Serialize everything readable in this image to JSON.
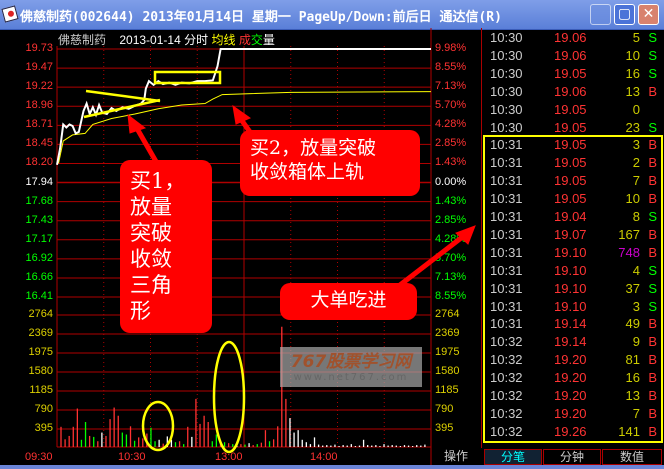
{
  "window": {
    "title": "佛慈制药(002644) 2013年01月14日 星期一 PageUp/Down:前后日 通达信(R)"
  },
  "chart_header": {
    "name": "佛慈制药",
    "date": "2013-01-14",
    "mode": "分时",
    "avg_label": "均线",
    "vol_label_1": "成",
    "vol_label_2": "交",
    "vol_label_3": "量"
  },
  "price_axis": {
    "labels": [
      "19.73",
      "19.47",
      "19.22",
      "18.96",
      "18.71",
      "18.45",
      "18.20",
      "17.94",
      "17.68",
      "17.43",
      "17.17",
      "16.92",
      "16.66",
      "16.41"
    ],
    "pct": [
      "9.98%",
      "8.55%",
      "7.13%",
      "5.70%",
      "4.28%",
      "2.85%",
      "1.43%",
      "0.00%",
      "1.43%",
      "2.85%",
      "4.28%",
      "5.70%",
      "7.13%",
      "8.55%"
    ],
    "prev_close": 17.94
  },
  "volume_axis": {
    "labels": [
      "2764",
      "2369",
      "1975",
      "1580",
      "1185",
      "790",
      "395"
    ]
  },
  "time_axis": [
    "09:30",
    "10:30",
    "13:00",
    "14:00"
  ],
  "colors": {
    "up": "#ff3232",
    "down": "#00ff00",
    "price_line": "#ffffff",
    "avg_line": "#ffff00",
    "grid": "#b00000"
  },
  "chart_data": {
    "type": "line",
    "price": [
      [
        "09:30",
        18.18
      ],
      [
        "09:32",
        18.4
      ],
      [
        "09:34",
        18.72
      ],
      [
        "09:36",
        18.68
      ],
      [
        "09:38",
        18.72
      ],
      [
        "09:40",
        18.7
      ],
      [
        "09:42",
        18.6
      ],
      [
        "09:44",
        18.62
      ],
      [
        "09:47",
        18.9
      ],
      [
        "09:49",
        19.0
      ],
      [
        "09:51",
        18.86
      ],
      [
        "09:53",
        18.95
      ],
      [
        "09:55",
        18.85
      ],
      [
        "09:57",
        18.98
      ],
      [
        "09:59",
        18.88
      ],
      [
        "10:02",
        18.86
      ],
      [
        "10:05",
        18.94
      ],
      [
        "10:08",
        18.9
      ],
      [
        "10:12",
        18.95
      ],
      [
        "10:16",
        18.93
      ],
      [
        "10:20",
        18.97
      ],
      [
        "10:24",
        19.0
      ],
      [
        "10:26",
        19.05
      ],
      [
        "10:27",
        19.2
      ],
      [
        "10:29",
        19.3
      ],
      [
        "10:32",
        19.25
      ],
      [
        "10:35",
        19.3
      ],
      [
        "10:38",
        19.26
      ],
      [
        "10:42",
        19.28
      ],
      [
        "10:46",
        19.25
      ],
      [
        "10:50",
        19.28
      ],
      [
        "10:55",
        19.27
      ],
      [
        "11:00",
        19.3
      ],
      [
        "11:05",
        19.3
      ],
      [
        "11:10",
        19.31
      ],
      [
        "11:13",
        19.5
      ],
      [
        "11:15",
        19.73
      ],
      [
        "15:00",
        19.73
      ]
    ],
    "avg": [
      [
        "09:31",
        18.2
      ],
      [
        "09:34",
        18.5
      ],
      [
        "09:40",
        18.58
      ],
      [
        "09:48",
        18.6
      ],
      [
        "09:53",
        18.72
      ],
      [
        "10:05",
        18.8
      ],
      [
        "10:20",
        18.86
      ],
      [
        "10:35",
        18.93
      ],
      [
        "10:50",
        18.98
      ],
      [
        "11:05",
        19.0
      ],
      [
        "11:10",
        19.06
      ],
      [
        "11:16",
        19.12
      ],
      [
        "13:30",
        19.15
      ],
      [
        "15:00",
        19.16
      ]
    ],
    "volume": [
      [
        420,
        "r"
      ],
      [
        160,
        "r"
      ],
      [
        230,
        "r"
      ],
      [
        420,
        "r"
      ],
      [
        800,
        "r"
      ],
      [
        150,
        "g"
      ],
      [
        520,
        "g"
      ],
      [
        230,
        "r"
      ],
      [
        210,
        "g"
      ],
      [
        120,
        "r"
      ],
      [
        300,
        "w"
      ],
      [
        230,
        "r"
      ],
      [
        580,
        "r"
      ],
      [
        820,
        "r"
      ],
      [
        650,
        "r"
      ],
      [
        300,
        "g"
      ],
      [
        260,
        "g"
      ],
      [
        430,
        "r"
      ],
      [
        130,
        "g"
      ],
      [
        200,
        "r"
      ],
      [
        180,
        "r"
      ],
      [
        280,
        "r"
      ],
      [
        400,
        "g"
      ],
      [
        120,
        "g"
      ],
      [
        150,
        "w"
      ],
      [
        70,
        "r"
      ],
      [
        220,
        "w"
      ],
      [
        150,
        "w"
      ],
      [
        100,
        "g"
      ],
      [
        120,
        "r"
      ],
      [
        60,
        "g"
      ],
      [
        420,
        "r"
      ],
      [
        210,
        "w"
      ],
      [
        1000,
        "r"
      ],
      [
        480,
        "r"
      ],
      [
        650,
        "r"
      ],
      [
        520,
        "r"
      ],
      [
        120,
        "g"
      ],
      [
        260,
        "g"
      ],
      [
        130,
        "r"
      ],
      [
        100,
        "g"
      ],
      [
        80,
        "r"
      ],
      [
        60,
        "g"
      ],
      [
        70,
        "w"
      ],
      [
        60,
        "r"
      ],
      [
        50,
        "g"
      ],
      [
        80,
        "w"
      ],
      [
        40,
        "r"
      ],
      [
        60,
        "g"
      ],
      [
        90,
        "r"
      ],
      [
        350,
        "r"
      ],
      [
        120,
        "g"
      ],
      [
        160,
        "r"
      ],
      [
        430,
        "r"
      ],
      [
        2500,
        "r"
      ],
      [
        1000,
        "r"
      ],
      [
        600,
        "w"
      ],
      [
        300,
        "w"
      ],
      [
        350,
        "w"
      ],
      [
        150,
        "w"
      ],
      [
        100,
        "w"
      ],
      [
        60,
        "w"
      ],
      [
        200,
        "w"
      ],
      [
        50,
        "w"
      ],
      [
        30,
        "w"
      ],
      [
        40,
        "w"
      ],
      [
        30,
        "w"
      ],
      [
        50,
        "w"
      ],
      [
        20,
        "w"
      ],
      [
        40,
        "w"
      ],
      [
        30,
        "w"
      ],
      [
        60,
        "w"
      ],
      [
        20,
        "w"
      ],
      [
        30,
        "w"
      ],
      [
        150,
        "w"
      ],
      [
        40,
        "w"
      ],
      [
        30,
        "w"
      ],
      [
        40,
        "w"
      ],
      [
        20,
        "w"
      ],
      [
        60,
        "w"
      ],
      [
        30,
        "w"
      ],
      [
        40,
        "w"
      ],
      [
        30,
        "w"
      ],
      [
        20,
        "w"
      ],
      [
        40,
        "w"
      ],
      [
        30,
        "w"
      ],
      [
        20,
        "w"
      ],
      [
        40,
        "w"
      ],
      [
        30,
        "w"
      ],
      [
        50,
        "w"
      ]
    ]
  },
  "annotations": {
    "buy1": [
      "买1，",
      "放量",
      "突破",
      "收敛",
      "三角",
      "形"
    ],
    "buy2": [
      "买2，放量突破",
      "收敛箱体上轨"
    ],
    "big": "大单吃进",
    "watermark_1": "767股票学习网",
    "watermark_2": "www.net767.com"
  },
  "bottom_tabs": {
    "op": "操作",
    "ticks": "分笔",
    "minute": "分钟",
    "value": "数值"
  },
  "ticks": [
    [
      "10:30",
      "19.06",
      "5",
      "S"
    ],
    [
      "10:30",
      "19.06",
      "10",
      "S"
    ],
    [
      "10:30",
      "19.05",
      "16",
      "S"
    ],
    [
      "10:30",
      "19.06",
      "13",
      "B"
    ],
    [
      "10:30",
      "19.05",
      "0",
      ""
    ],
    [
      "10:30",
      "19.05",
      "23",
      "S"
    ],
    [
      "10:31",
      "19.05",
      "3",
      "B"
    ],
    [
      "10:31",
      "19.05",
      "2",
      "B"
    ],
    [
      "10:31",
      "19.05",
      "7",
      "B"
    ],
    [
      "10:31",
      "19.05",
      "10",
      "B"
    ],
    [
      "10:31",
      "19.04",
      "8",
      "S"
    ],
    [
      "10:31",
      "19.07",
      "167",
      "B"
    ],
    [
      "10:31",
      "19.10",
      "748",
      "B"
    ],
    [
      "10:31",
      "19.10",
      "4",
      "S"
    ],
    [
      "10:31",
      "19.10",
      "37",
      "S"
    ],
    [
      "10:31",
      "19.10",
      "3",
      "S"
    ],
    [
      "10:31",
      "19.14",
      "49",
      "B"
    ],
    [
      "10:32",
      "19.14",
      "9",
      "B"
    ],
    [
      "10:32",
      "19.20",
      "81",
      "B"
    ],
    [
      "10:32",
      "19.20",
      "16",
      "B"
    ],
    [
      "10:32",
      "19.20",
      "13",
      "B"
    ],
    [
      "10:32",
      "19.20",
      "7",
      "B"
    ],
    [
      "10:32",
      "19.26",
      "141",
      "B"
    ]
  ]
}
